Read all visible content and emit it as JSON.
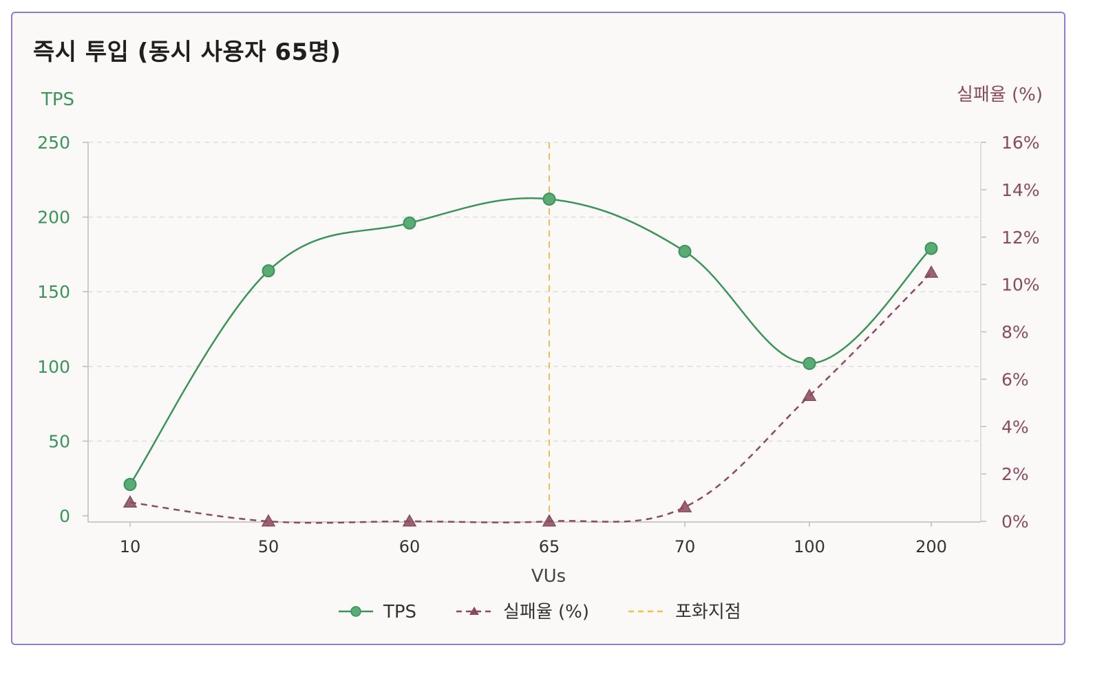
{
  "colors": {
    "tps": "#3a9358",
    "fail": "#8a4a5e",
    "saturation": "#f0c040",
    "grid": "#dddddd",
    "axis": "#bbbbbb"
  },
  "chart_data": {
    "type": "line",
    "title": "즉시 투입 (동시 사용자 65명)",
    "xlabel": "VUs",
    "ylabel": "TPS",
    "y2label": "실패율 (%)",
    "categories": [
      "10",
      "50",
      "60",
      "65",
      "70",
      "100",
      "200"
    ],
    "ylim": [
      0,
      250
    ],
    "y2lim": [
      0,
      16
    ],
    "yticks": [
      "0",
      "50",
      "100",
      "150",
      "200",
      "250"
    ],
    "y2ticks": [
      "0%",
      "2%",
      "4%",
      "6%",
      "8%",
      "10%",
      "12%",
      "14%",
      "16%"
    ],
    "series": [
      {
        "name": "TPS",
        "axis": "left",
        "values": [
          21,
          164,
          196,
          212,
          177,
          102,
          179
        ]
      },
      {
        "name": "실패율 (%)",
        "axis": "right",
        "values": [
          0.8,
          0.0,
          0.0,
          0.0,
          0.6,
          5.3,
          10.5
        ]
      }
    ],
    "annotations": [
      {
        "name": "포화지점",
        "type": "vline",
        "x": "65"
      }
    ],
    "legend": "bottom",
    "grid": true
  }
}
